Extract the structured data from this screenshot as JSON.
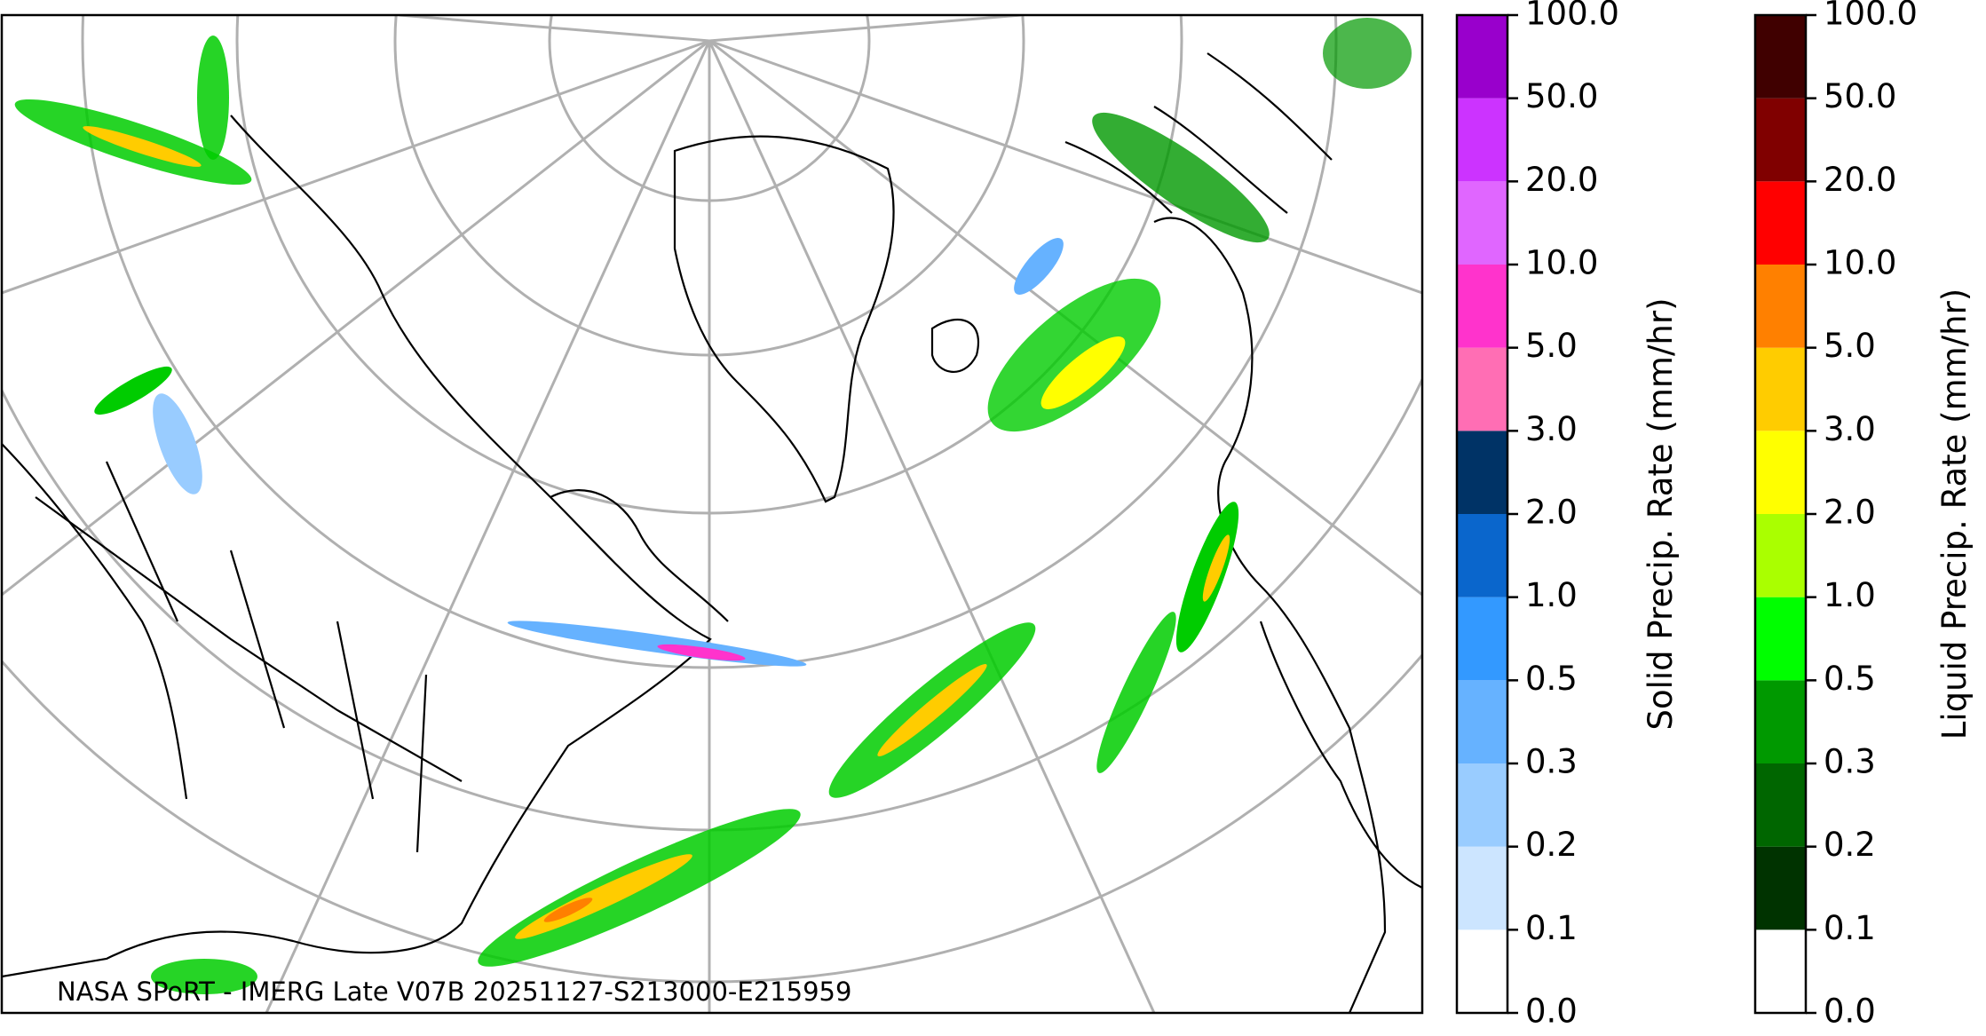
{
  "map": {
    "caption": "NASA SPoRT - IMERG Late V07B 20251127-S213000-E215959"
  },
  "colorbars": [
    {
      "label": "Solid Precip. Rate (mm/hr)",
      "ticks": [
        {
          "value": 0,
          "label": "0.0"
        },
        {
          "value": 0.1,
          "label": "0.1"
        },
        {
          "value": 0.2,
          "label": "0.2"
        },
        {
          "value": 0.3,
          "label": "0.3"
        },
        {
          "value": 0.5,
          "label": "0.5"
        },
        {
          "value": 1,
          "label": "1.0"
        },
        {
          "value": 2,
          "label": "2.0"
        },
        {
          "value": 3,
          "label": "3.0"
        },
        {
          "value": 5,
          "label": "5.0"
        },
        {
          "value": 10,
          "label": "10.0"
        },
        {
          "value": 20,
          "label": "20.0"
        },
        {
          "value": 50,
          "label": "50.0"
        },
        {
          "value": 100,
          "label": "100.0"
        }
      ],
      "colors": [
        "#ffffff",
        "#cce5ff",
        "#99ccff",
        "#66b2ff",
        "#3399ff",
        "#0a66cc",
        "#003366",
        "#ff6eb4",
        "#ff33cc",
        "#e066ff",
        "#cc33ff",
        "#9900cc"
      ]
    },
    {
      "label": "Liquid Precip. Rate (mm/hr)",
      "ticks": [
        {
          "value": 0,
          "label": "0.0"
        },
        {
          "value": 0.1,
          "label": "0.1"
        },
        {
          "value": 0.2,
          "label": "0.2"
        },
        {
          "value": 0.3,
          "label": "0.3"
        },
        {
          "value": 0.5,
          "label": "0.5"
        },
        {
          "value": 1,
          "label": "1.0"
        },
        {
          "value": 2,
          "label": "2.0"
        },
        {
          "value": 3,
          "label": "3.0"
        },
        {
          "value": 5,
          "label": "5.0"
        },
        {
          "value": 10,
          "label": "10.0"
        },
        {
          "value": 20,
          "label": "20.0"
        },
        {
          "value": 50,
          "label": "50.0"
        },
        {
          "value": 100,
          "label": "100.0"
        }
      ],
      "colors": [
        "#ffffff",
        "#003300",
        "#006600",
        "#009900",
        "#00ff00",
        "#aaff00",
        "#ffff00",
        "#ffcc00",
        "#ff8000",
        "#ff0000",
        "#800000",
        "#400000"
      ]
    }
  ]
}
